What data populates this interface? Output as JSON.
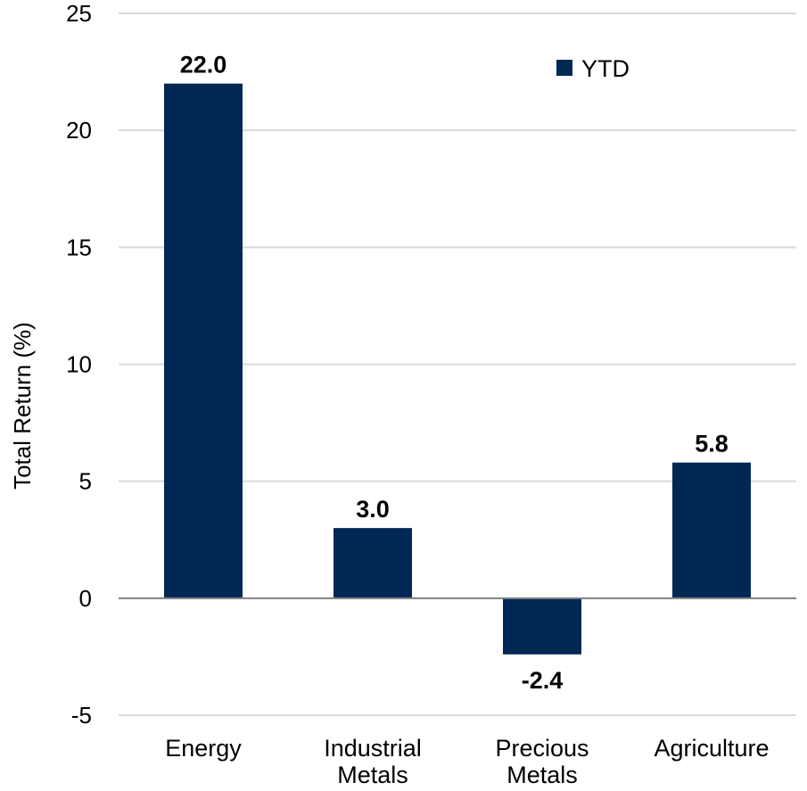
{
  "chart_data": {
    "type": "bar",
    "categories": [
      "Energy",
      "Industrial Metals",
      "Precious Metals",
      "Agriculture"
    ],
    "category_lines": [
      [
        "Energy"
      ],
      [
        "Industrial",
        "Metals"
      ],
      [
        "Precious",
        "Metals"
      ],
      [
        "Agriculture"
      ]
    ],
    "series": [
      {
        "name": "YTD",
        "values": [
          22.0,
          3.0,
          -2.4,
          5.8
        ]
      }
    ],
    "data_labels": [
      "22.0",
      "3.0",
      "-2.4",
      "5.8"
    ],
    "ylabel": "Total Return (%)",
    "xlabel": "",
    "title": "",
    "ylim": [
      -5,
      25
    ],
    "yticks": [
      -5,
      0,
      5,
      10,
      15,
      20,
      25
    ],
    "grid": true,
    "legend_position": "top-right",
    "colors": {
      "bar": "#002855",
      "grid": "#d9d9d9",
      "zero_line": "#808080"
    }
  }
}
